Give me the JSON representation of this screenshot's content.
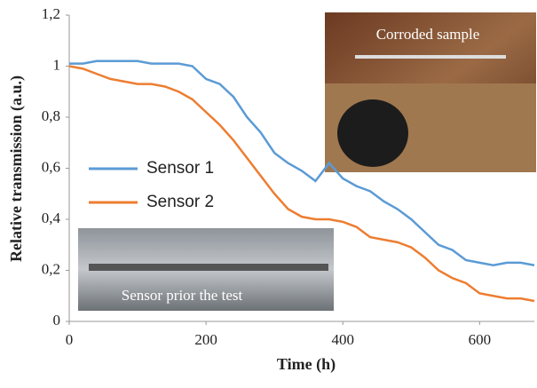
{
  "chart_data": {
    "type": "line",
    "x_label": "Time (h)",
    "y_label": "Relative transmission (a.u.)",
    "xlim": [
      0,
      680
    ],
    "xticks": [
      0,
      200,
      400,
      600
    ],
    "ylim": [
      0,
      1.2
    ],
    "yticks": [
      0,
      {
        "value": 0.2,
        "label": "0,2"
      },
      {
        "value": 0.4,
        "label": "0,4"
      },
      {
        "value": 0.6,
        "label": "0,6"
      },
      {
        "value": 0.8,
        "label": "0,8"
      },
      1,
      {
        "value": 1.2,
        "label": "1,2"
      }
    ],
    "x": [
      0,
      20,
      40,
      60,
      80,
      100,
      120,
      140,
      160,
      180,
      200,
      220,
      240,
      260,
      280,
      300,
      320,
      340,
      360,
      380,
      400,
      420,
      440,
      460,
      480,
      500,
      520,
      540,
      560,
      580,
      600,
      620,
      640,
      660,
      680
    ],
    "series": [
      {
        "name": "Sensor 1",
        "color": "#5b9bd5",
        "values": [
          1.01,
          1.01,
          1.02,
          1.02,
          1.02,
          1.02,
          1.01,
          1.01,
          1.01,
          1.0,
          0.95,
          0.93,
          0.88,
          0.8,
          0.74,
          0.66,
          0.62,
          0.59,
          0.55,
          0.62,
          0.56,
          0.53,
          0.51,
          0.47,
          0.44,
          0.4,
          0.35,
          0.3,
          0.28,
          0.24,
          0.23,
          0.22,
          0.23,
          0.23,
          0.22
        ]
      },
      {
        "name": "Sensor 2",
        "color": "#ed7d31",
        "values": [
          1.0,
          0.99,
          0.97,
          0.95,
          0.94,
          0.93,
          0.93,
          0.92,
          0.9,
          0.87,
          0.82,
          0.77,
          0.71,
          0.64,
          0.57,
          0.5,
          0.44,
          0.41,
          0.4,
          0.4,
          0.39,
          0.37,
          0.33,
          0.32,
          0.31,
          0.29,
          0.25,
          0.2,
          0.17,
          0.15,
          0.11,
          0.1,
          0.09,
          0.09,
          0.08
        ]
      }
    ],
    "annotations": [
      "Corroded sample",
      "Sensor prior the test"
    ]
  }
}
